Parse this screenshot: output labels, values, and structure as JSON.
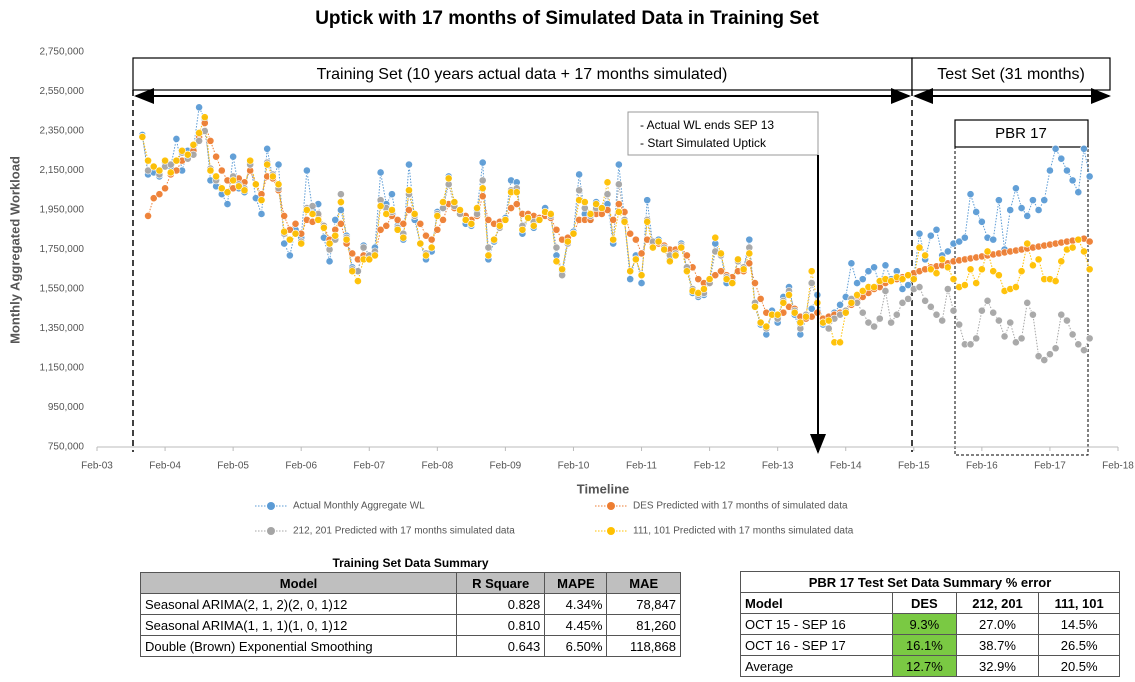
{
  "chart_data": {
    "type": "line",
    "title": "Uptick with 17 months of Simulated Data in Training Set",
    "x_label": "Timeline",
    "y_label": "Monthly Aggregated Workload",
    "annotations": [
      "Training Set (10 years actual data + 17 months simulated)",
      "Test Set (31 months)",
      "PBR 17",
      "- Actual WL ends SEP 13",
      "- Start Simulated Uptick"
    ],
    "xlim": [
      0,
      180
    ],
    "xticks": [
      {
        "value": 0,
        "label": "Feb-03"
      },
      {
        "value": 12,
        "label": "Feb-04"
      },
      {
        "value": 24,
        "label": "Feb-05"
      },
      {
        "value": 36,
        "label": "Feb-06"
      },
      {
        "value": 48,
        "label": "Feb-07"
      },
      {
        "value": 60,
        "label": "Feb-08"
      },
      {
        "value": 72,
        "label": "Feb-09"
      },
      {
        "value": 84,
        "label": "Feb-10"
      },
      {
        "value": 96,
        "label": "Feb-11"
      },
      {
        "value": 108,
        "label": "Feb-12"
      },
      {
        "value": 120,
        "label": "Feb-13"
      },
      {
        "value": 132,
        "label": "Feb-14"
      },
      {
        "value": 144,
        "label": "Feb-15"
      },
      {
        "value": 156,
        "label": "Feb-16"
      },
      {
        "value": 168,
        "label": "Feb-17"
      },
      {
        "value": 180,
        "label": "Feb-18"
      }
    ],
    "ylim": [
      750000,
      2750000
    ],
    "yticks": [
      {
        "value": 750000,
        "label": "750,000"
      },
      {
        "value": 950000,
        "label": "950,000"
      },
      {
        "value": 1150000,
        "label": "1,150,000"
      },
      {
        "value": 1350000,
        "label": "1,350,000"
      },
      {
        "value": 1550000,
        "label": "1,550,000"
      },
      {
        "value": 1750000,
        "label": "1,750,000"
      },
      {
        "value": 1950000,
        "label": "1,950,000"
      },
      {
        "value": 2150000,
        "label": "2,150,000"
      },
      {
        "value": 2350000,
        "label": "2,350,000"
      },
      {
        "value": 2550000,
        "label": "2,550,000"
      },
      {
        "value": 2750000,
        "label": "2,750,000"
      }
    ],
    "x": [
      8,
      9,
      10,
      11,
      12,
      13,
      14,
      15,
      16,
      17,
      18,
      19,
      20,
      21,
      22,
      23,
      24,
      25,
      26,
      27,
      28,
      29,
      30,
      31,
      32,
      33,
      34,
      35,
      36,
      37,
      38,
      39,
      40,
      41,
      42,
      43,
      44,
      45,
      46,
      47,
      48,
      49,
      50,
      51,
      52,
      53,
      54,
      55,
      56,
      57,
      58,
      59,
      60,
      61,
      62,
      63,
      64,
      65,
      66,
      67,
      68,
      69,
      70,
      71,
      72,
      73,
      74,
      75,
      76,
      77,
      78,
      79,
      80,
      81,
      82,
      83,
      84,
      85,
      86,
      87,
      88,
      89,
      90,
      91,
      92,
      93,
      94,
      95,
      96,
      97,
      98,
      99,
      100,
      101,
      102,
      103,
      104,
      105,
      106,
      107,
      108,
      109,
      110,
      111,
      112,
      113,
      114,
      115,
      116,
      117,
      118,
      119,
      120,
      121,
      122,
      123,
      124,
      125,
      126,
      127,
      128,
      129,
      130,
      131,
      132,
      133,
      134,
      135,
      136,
      137,
      138,
      139,
      140,
      141,
      142,
      143,
      144,
      145,
      146,
      147,
      148,
      149,
      150,
      151,
      152,
      153,
      154,
      155,
      156,
      157,
      158,
      159,
      160,
      161,
      162,
      163,
      164,
      165,
      166,
      167,
      168,
      169,
      170,
      171,
      172,
      173,
      174,
      175
    ],
    "series": [
      {
        "name": "Actual Monthly Aggregate WL",
        "color": "#5b9bd5",
        "values": [
          2330000,
          2130000,
          2140000,
          2120000,
          2190000,
          2170000,
          2310000,
          2150000,
          2250000,
          2260000,
          2470000,
          2410000,
          2100000,
          2070000,
          2030000,
          1980000,
          2220000,
          2060000,
          2040000,
          2190000,
          2010000,
          1930000,
          2260000,
          2110000,
          2180000,
          1780000,
          1720000,
          1850000,
          1810000,
          2150000,
          1950000,
          1980000,
          1810000,
          1690000,
          1900000,
          1950000,
          1820000,
          1660000,
          1640000,
          1770000,
          1720000,
          1760000,
          2140000,
          1980000,
          2030000,
          1870000,
          1800000,
          2180000,
          1900000,
          1780000,
          1700000,
          1740000,
          1940000,
          1960000,
          2120000,
          1990000,
          1940000,
          1880000,
          1870000,
          1950000,
          2190000,
          1700000,
          1790000,
          1870000,
          1910000,
          2100000,
          2090000,
          1830000,
          1910000,
          1860000,
          1900000,
          1960000,
          1920000,
          1720000,
          1640000,
          1800000,
          1840000,
          2130000,
          1930000,
          1900000,
          1990000,
          1960000,
          1980000,
          1780000,
          2180000,
          1900000,
          1600000,
          1720000,
          1580000,
          2000000,
          1770000,
          1800000,
          1750000,
          1700000,
          1730000,
          1780000,
          1650000,
          1530000,
          1510000,
          1520000,
          1590000,
          1780000,
          1720000,
          1580000,
          1590000,
          1700000,
          1650000,
          1800000,
          1460000,
          1370000,
          1320000,
          1440000,
          1380000,
          1510000,
          1560000,
          1420000,
          1320000,
          1400000,
          1450000,
          1520000,
          1370000,
          1410000,
          1430000,
          1470000,
          1510000,
          1680000,
          1580000,
          1600000,
          1640000,
          1660000,
          1570000,
          1670000,
          1600000,
          1640000,
          1550000,
          1570000,
          1610000,
          1830000,
          1700000,
          1820000,
          1850000,
          1720000,
          1740000,
          1780000,
          1790000,
          1810000,
          2030000,
          1940000,
          1890000,
          1810000,
          1800000,
          2000000,
          1750000,
          1950000,
          2060000,
          1960000,
          1920000,
          2000000,
          1950000,
          2000000,
          2150000,
          2260000,
          2210000,
          2150000,
          2100000,
          2040000,
          2260000,
          2120000
        ]
      },
      {
        "name": "DES Predicted with 17 months of simulated data",
        "color": "#ed7d31",
        "values": [
          null,
          1920000,
          2010000,
          2030000,
          2060000,
          2130000,
          2150000,
          2200000,
          2230000,
          2250000,
          2320000,
          2390000,
          2300000,
          2220000,
          2150000,
          2100000,
          2060000,
          2110000,
          2090000,
          2150000,
          2080000,
          2030000,
          2120000,
          2110000,
          2050000,
          1920000,
          1850000,
          1880000,
          1830000,
          1900000,
          1890000,
          1920000,
          1870000,
          1800000,
          1850000,
          1880000,
          1780000,
          1730000,
          1700000,
          1720000,
          1700000,
          1720000,
          1850000,
          1870000,
          1920000,
          1900000,
          1880000,
          1950000,
          1920000,
          1880000,
          1820000,
          1800000,
          1850000,
          1900000,
          1980000,
          1960000,
          1940000,
          1920000,
          1900000,
          1920000,
          2020000,
          1900000,
          1880000,
          1890000,
          1900000,
          1960000,
          1980000,
          1930000,
          1930000,
          1920000,
          1910000,
          1920000,
          1910000,
          1850000,
          1800000,
          1810000,
          1830000,
          1900000,
          1900000,
          1900000,
          1930000,
          1930000,
          1950000,
          1900000,
          1980000,
          1940000,
          1830000,
          1800000,
          1730000,
          1800000,
          1780000,
          1780000,
          1770000,
          1750000,
          1750000,
          1760000,
          1720000,
          1660000,
          1600000,
          1580000,
          1580000,
          1620000,
          1640000,
          1620000,
          1610000,
          1640000,
          1640000,
          1680000,
          1580000,
          1500000,
          1430000,
          1420000,
          1410000,
          1430000,
          1460000,
          1450000,
          1410000,
          1400000,
          1410000,
          1430000,
          1400000,
          1410000,
          1420000,
          1430000,
          1440000,
          1470000,
          1490000,
          1510000,
          1530000,
          1550000,
          1560000,
          1580000,
          1590000,
          1600000,
          1610000,
          1620000,
          1630000,
          1640000,
          1650000,
          1660000,
          1665000,
          1670000,
          1680000,
          1690000,
          1695000,
          1700000,
          1705000,
          1710000,
          1715000,
          1720000,
          1725000,
          1730000,
          1735000,
          1740000,
          1745000,
          1750000,
          1755000,
          1760000,
          1765000,
          1770000,
          1775000,
          1780000,
          1785000,
          1790000,
          1795000,
          1800000,
          1805000,
          1790000
        ]
      },
      {
        "name": "212, 201 Predicted with 17 months simulated data",
        "color": "#a5a5a5",
        "values": [
          2320000,
          2150000,
          2170000,
          2130000,
          2170000,
          2180000,
          2200000,
          2240000,
          2210000,
          2230000,
          2300000,
          2350000,
          2160000,
          2100000,
          2060000,
          2040000,
          2120000,
          2080000,
          2060000,
          2180000,
          2080000,
          2000000,
          2190000,
          2130000,
          2060000,
          1830000,
          1800000,
          1830000,
          1790000,
          1960000,
          1970000,
          1930000,
          1870000,
          1750000,
          1800000,
          2030000,
          1810000,
          1650000,
          1640000,
          1760000,
          1720000,
          1740000,
          2000000,
          1960000,
          1940000,
          1860000,
          1830000,
          2030000,
          1920000,
          1780000,
          1730000,
          1760000,
          1930000,
          1960000,
          2080000,
          1970000,
          1930000,
          1900000,
          1880000,
          1930000,
          2100000,
          1760000,
          1800000,
          1860000,
          1900000,
          2050000,
          2060000,
          1870000,
          1910000,
          1890000,
          1900000,
          1940000,
          1920000,
          1760000,
          1620000,
          1780000,
          1830000,
          2050000,
          1960000,
          1920000,
          1960000,
          1960000,
          2030000,
          1800000,
          2080000,
          1900000,
          1640000,
          1700000,
          1620000,
          1900000,
          1790000,
          1790000,
          1760000,
          1720000,
          1730000,
          1770000,
          1660000,
          1550000,
          1520000,
          1530000,
          1580000,
          1740000,
          1720000,
          1610000,
          1580000,
          1690000,
          1660000,
          1760000,
          1480000,
          1380000,
          1350000,
          1420000,
          1400000,
          1490000,
          1540000,
          1440000,
          1350000,
          1420000,
          1580000,
          1480000,
          1380000,
          1350000,
          1400000,
          1420000,
          1440000,
          1500000,
          1480000,
          1430000,
          1380000,
          1360000,
          1400000,
          1540000,
          1380000,
          1420000,
          1480000,
          1500000,
          1550000,
          1560000,
          1490000,
          1460000,
          1420000,
          1390000,
          1550000,
          1440000,
          1370000,
          1270000,
          1270000,
          1300000,
          1440000,
          1490000,
          1430000,
          1390000,
          1310000,
          1380000,
          1280000,
          1300000,
          1480000,
          1420000,
          1210000,
          1190000,
          1220000,
          1250000,
          1420000,
          1390000,
          1320000,
          1270000,
          1240000,
          1300000
        ]
      },
      {
        "name": "111, 101 Predicted with 17 months simulated data",
        "color": "#ffc000",
        "values": [
          2320000,
          2200000,
          2170000,
          2150000,
          2200000,
          2140000,
          2200000,
          2250000,
          2230000,
          2280000,
          2340000,
          2420000,
          2150000,
          2120000,
          2060000,
          2040000,
          2100000,
          2070000,
          2050000,
          2200000,
          2080000,
          2000000,
          2180000,
          2120000,
          2080000,
          1840000,
          1800000,
          1830000,
          1780000,
          1950000,
          1930000,
          1900000,
          1860000,
          1780000,
          1820000,
          1990000,
          1800000,
          1640000,
          1590000,
          1700000,
          1700000,
          1720000,
          1970000,
          1930000,
          1950000,
          1850000,
          1810000,
          2050000,
          1930000,
          1780000,
          1720000,
          1760000,
          1920000,
          1990000,
          2110000,
          1990000,
          1950000,
          1900000,
          1880000,
          1960000,
          2060000,
          1720000,
          1800000,
          1870000,
          1900000,
          2040000,
          2040000,
          1850000,
          1910000,
          1870000,
          1900000,
          1940000,
          1930000,
          1690000,
          1650000,
          1790000,
          1830000,
          2000000,
          1990000,
          1930000,
          1980000,
          1960000,
          2090000,
          1800000,
          1940000,
          1890000,
          1640000,
          1700000,
          1620000,
          1890000,
          1760000,
          1790000,
          1750000,
          1690000,
          1720000,
          1760000,
          1640000,
          1540000,
          1530000,
          1550000,
          1600000,
          1810000,
          1730000,
          1600000,
          1580000,
          1700000,
          1650000,
          1730000,
          1460000,
          1380000,
          1360000,
          1420000,
          1420000,
          1480000,
          1520000,
          1430000,
          1380000,
          1410000,
          1640000,
          1480000,
          1380000,
          1390000,
          1280000,
          1280000,
          1430000,
          1480000,
          1520000,
          1540000,
          1560000,
          1560000,
          1590000,
          1600000,
          1590000,
          1610000,
          1600000,
          1620000,
          1600000,
          1760000,
          1720000,
          1650000,
          1630000,
          1700000,
          1660000,
          1600000,
          1560000,
          1570000,
          1650000,
          1580000,
          1650000,
          1740000,
          1640000,
          1620000,
          1540000,
          1550000,
          1560000,
          1640000,
          1780000,
          1670000,
          1700000,
          1600000,
          1600000,
          1590000,
          1690000,
          1750000,
          1760000,
          1800000,
          1740000,
          1650000
        ]
      }
    ]
  },
  "training_table": {
    "title": "Training Set Data Summary",
    "header": [
      "Model",
      "R Square",
      "MAPE",
      "MAE"
    ],
    "rows": [
      [
        "Seasonal ARIMA(2, 1, 2)(2, 0, 1)12",
        "0.828",
        "4.34%",
        "78,847"
      ],
      [
        "Seasonal ARIMA(1, 1, 1)(1, 0, 1)12",
        "0.810",
        "4.45%",
        "81,260"
      ],
      [
        "Double (Brown) Exponential Smoothing",
        "0.643",
        "6.50%",
        "118,868"
      ]
    ]
  },
  "test_table": {
    "title": "PBR 17 Test Set Data Summary % error",
    "header": [
      "Model",
      "DES",
      "212, 201",
      "111, 101"
    ],
    "rows": [
      [
        "OCT 15 - SEP 16",
        "9.3%",
        "27.0%",
        "14.5%"
      ],
      [
        "OCT 16 - SEP 17",
        "16.1%",
        "38.7%",
        "26.5%"
      ],
      [
        "Average",
        "12.7%",
        "32.9%",
        "20.5%"
      ]
    ]
  }
}
